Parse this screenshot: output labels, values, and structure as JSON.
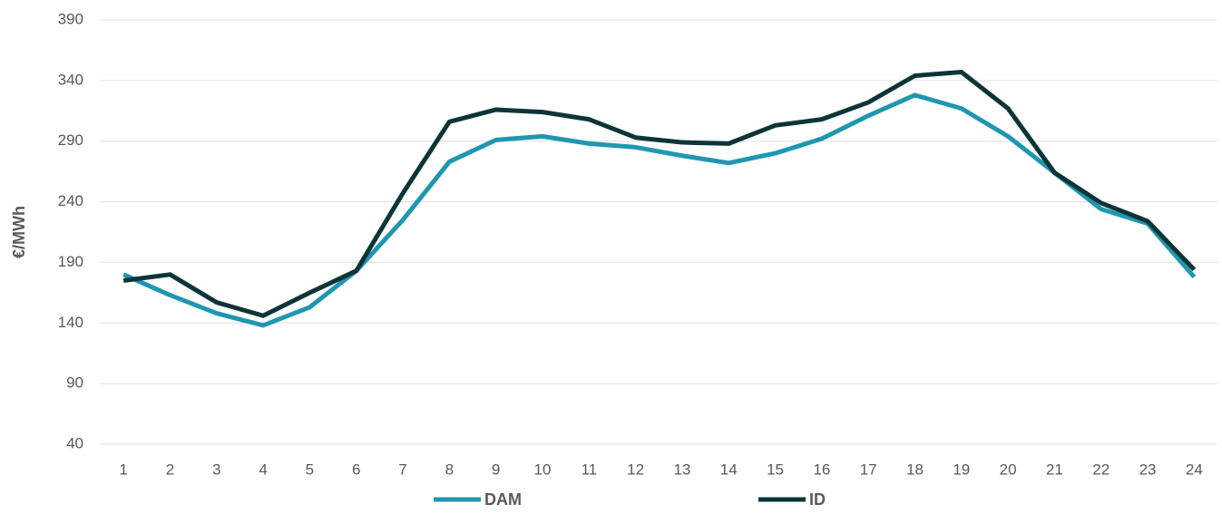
{
  "chart_data": {
    "type": "line",
    "y_label": "€/MWh",
    "categories": [
      "1",
      "2",
      "3",
      "4",
      "5",
      "6",
      "7",
      "8",
      "9",
      "10",
      "11",
      "12",
      "13",
      "14",
      "15",
      "16",
      "17",
      "18",
      "19",
      "20",
      "21",
      "22",
      "23",
      "24"
    ],
    "series": [
      {
        "name": "DAM",
        "color": "#1f97b1",
        "values": [
          180,
          163,
          148,
          138,
          153,
          183,
          225,
          273,
          291,
          294,
          288,
          285,
          278,
          272,
          280,
          292,
          311,
          328,
          317,
          294,
          264,
          234,
          222,
          178
        ]
      },
      {
        "name": "ID",
        "color": "#0d3538",
        "values": [
          175,
          180,
          157,
          146,
          165,
          183,
          247,
          306,
          316,
          314,
          308,
          293,
          289,
          288,
          303,
          308,
          322,
          344,
          347,
          317,
          264,
          239,
          224,
          184
        ]
      }
    ],
    "ylim": [
      40,
      390
    ],
    "yticks": [
      40,
      90,
      140,
      190,
      240,
      290,
      340,
      390
    ],
    "grid": true
  }
}
